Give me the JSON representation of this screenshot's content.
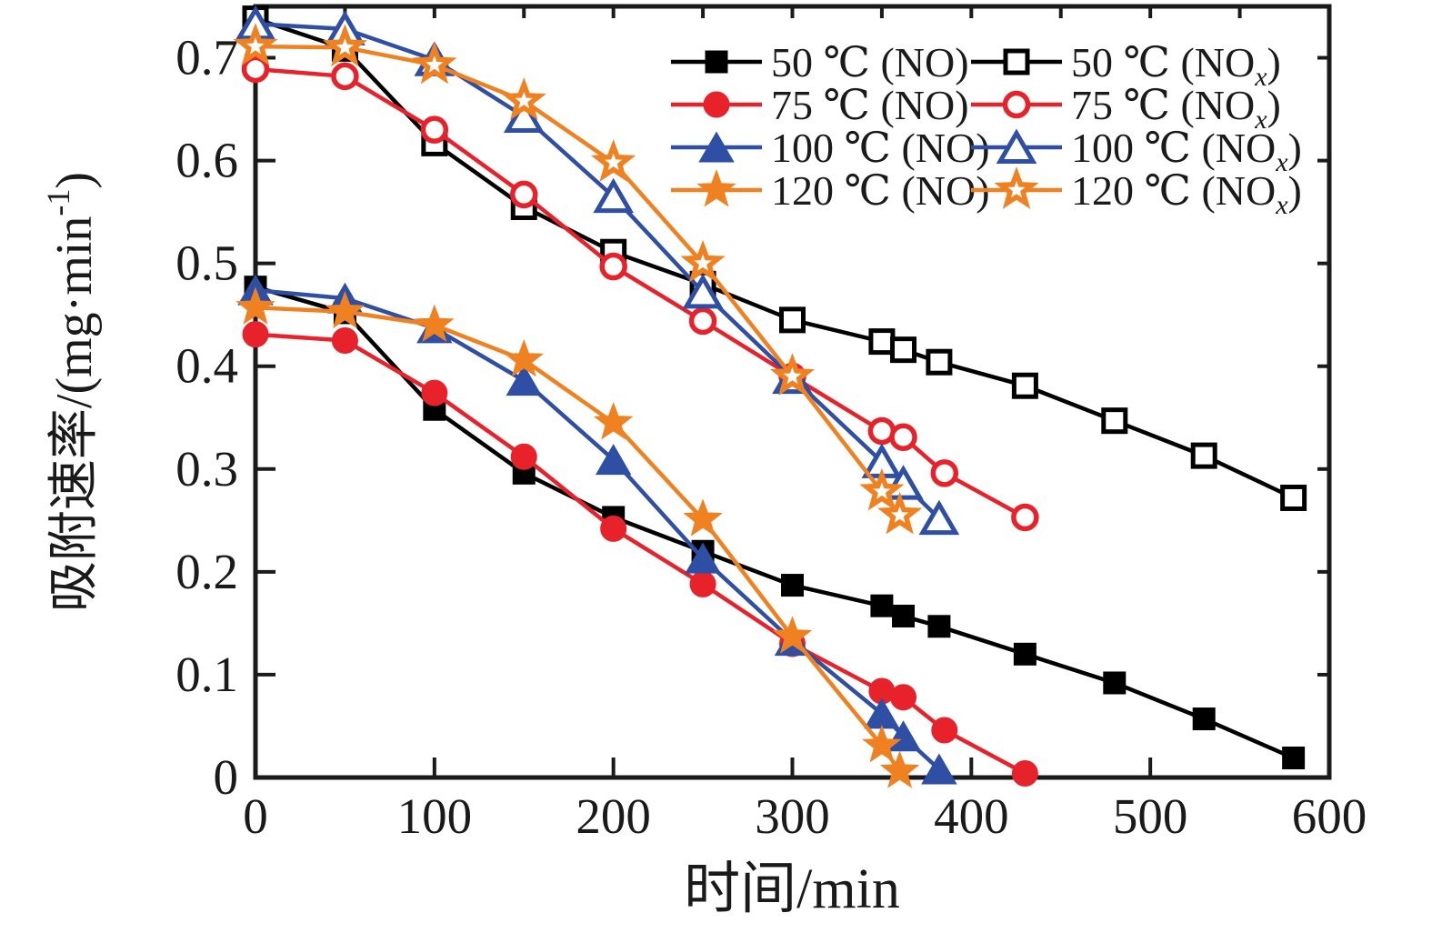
{
  "chart_data": {
    "type": "line",
    "title": "",
    "xlabel": "时间/min",
    "ylabel_pre": "吸附速率/(mg·min",
    "ylabel_sup": "-1",
    "ylabel_post": ")",
    "xlim": [
      0,
      600
    ],
    "ylim": [
      0,
      0.75
    ],
    "x_ticks": [
      0,
      100,
      200,
      300,
      400,
      500,
      600
    ],
    "x_tick_labels": [
      "0",
      "100",
      "200",
      "300",
      "400",
      "500",
      "600"
    ],
    "x_minor_tick_step_top": 50,
    "y_ticks": [
      0,
      0.1,
      0.2,
      0.3,
      0.4,
      0.5,
      0.6,
      0.7
    ],
    "y_tick_labels": [
      "0",
      "0.1",
      "0.2",
      "0.3",
      "0.4",
      "0.5",
      "0.6",
      "0.7"
    ],
    "grid": false,
    "legend_position": "top-right-inside",
    "colors": {
      "black": "#000000",
      "red": "#e8222a",
      "blue": "#2e4fa3",
      "orange": "#f08121"
    },
    "series": [
      {
        "id": "50c-no",
        "legend_pre": "50 ℃ (NO",
        "legend_sub": "",
        "legend_post": ")",
        "color": "#000000",
        "marker": "square",
        "filled": true,
        "legend_row": 0,
        "legend_col": 0,
        "points": [
          [
            0,
            0.477
          ],
          [
            50,
            0.452
          ],
          [
            100,
            0.358
          ],
          [
            150,
            0.296
          ],
          [
            200,
            0.253
          ],
          [
            250,
            0.22
          ],
          [
            300,
            0.187
          ],
          [
            350,
            0.167
          ],
          [
            362,
            0.157
          ],
          [
            382,
            0.147
          ],
          [
            430,
            0.12
          ],
          [
            480,
            0.092
          ],
          [
            530,
            0.057
          ],
          [
            580,
            0.019
          ]
        ]
      },
      {
        "id": "50c-nox",
        "legend_pre": "50 ℃ (NO",
        "legend_sub": "x",
        "legend_post": ")",
        "color": "#000000",
        "marker": "square",
        "filled": false,
        "legend_row": 0,
        "legend_col": 1,
        "points": [
          [
            0,
            0.738
          ],
          [
            50,
            0.709
          ],
          [
            100,
            0.617
          ],
          [
            150,
            0.555
          ],
          [
            200,
            0.511
          ],
          [
            250,
            0.48
          ],
          [
            300,
            0.445
          ],
          [
            350,
            0.424
          ],
          [
            362,
            0.416
          ],
          [
            382,
            0.404
          ],
          [
            430,
            0.381
          ],
          [
            480,
            0.347
          ],
          [
            530,
            0.313
          ],
          [
            580,
            0.272
          ]
        ]
      },
      {
        "id": "75c-no",
        "legend_pre": "75 ℃ (NO",
        "legend_sub": "",
        "legend_post": ")",
        "color": "#e8222a",
        "marker": "circle",
        "filled": true,
        "legend_row": 1,
        "legend_col": 0,
        "points": [
          [
            0,
            0.431
          ],
          [
            50,
            0.425
          ],
          [
            100,
            0.374
          ],
          [
            150,
            0.312
          ],
          [
            200,
            0.242
          ],
          [
            250,
            0.188
          ],
          [
            300,
            0.13
          ],
          [
            350,
            0.084
          ],
          [
            362,
            0.078
          ],
          [
            385,
            0.046
          ],
          [
            430,
            0.004
          ]
        ]
      },
      {
        "id": "75c-nox",
        "legend_pre": "75 ℃ (NO",
        "legend_sub": "x",
        "legend_post": ")",
        "color": "#e8222a",
        "marker": "circle",
        "filled": false,
        "legend_row": 1,
        "legend_col": 1,
        "points": [
          [
            0,
            0.689
          ],
          [
            50,
            0.682
          ],
          [
            100,
            0.63
          ],
          [
            150,
            0.567
          ],
          [
            200,
            0.497
          ],
          [
            250,
            0.444
          ],
          [
            300,
            0.39
          ],
          [
            350,
            0.337
          ],
          [
            362,
            0.331
          ],
          [
            385,
            0.296
          ],
          [
            430,
            0.253
          ]
        ]
      },
      {
        "id": "100c-no",
        "legend_pre": "100 ℃ (NO",
        "legend_sub": "",
        "legend_post": ")",
        "color": "#2e4fa3",
        "marker": "triangle",
        "filled": true,
        "legend_row": 2,
        "legend_col": 0,
        "points": [
          [
            0,
            0.474
          ],
          [
            50,
            0.466
          ],
          [
            100,
            0.437
          ],
          [
            150,
            0.386
          ],
          [
            200,
            0.309
          ],
          [
            250,
            0.213
          ],
          [
            300,
            0.133
          ],
          [
            350,
            0.062
          ],
          [
            362,
            0.04
          ],
          [
            382,
            0.008
          ]
        ]
      },
      {
        "id": "100c-nox",
        "legend_pre": "100 ℃ (NO",
        "legend_sub": "x",
        "legend_post": ")",
        "color": "#2e4fa3",
        "marker": "triangle",
        "filled": false,
        "legend_row": 2,
        "legend_col": 1,
        "points": [
          [
            0,
            0.733
          ],
          [
            50,
            0.728
          ],
          [
            100,
            0.698
          ],
          [
            150,
            0.643
          ],
          [
            200,
            0.565
          ],
          [
            250,
            0.472
          ],
          [
            300,
            0.389
          ],
          [
            350,
            0.307
          ],
          [
            362,
            0.286
          ],
          [
            382,
            0.252
          ]
        ]
      },
      {
        "id": "120c-no",
        "legend_pre": "120 ℃ (NO",
        "legend_sub": "",
        "legend_post": ")",
        "color": "#f08121",
        "marker": "star",
        "filled": true,
        "legend_row": 3,
        "legend_col": 0,
        "points": [
          [
            0,
            0.457
          ],
          [
            50,
            0.453
          ],
          [
            100,
            0.44
          ],
          [
            150,
            0.406
          ],
          [
            200,
            0.345
          ],
          [
            250,
            0.251
          ],
          [
            300,
            0.137
          ],
          [
            350,
            0.031
          ],
          [
            360,
            0.006
          ]
        ]
      },
      {
        "id": "120c-nox",
        "legend_pre": "120 ℃ (NO",
        "legend_sub": "x",
        "legend_post": ")",
        "color": "#f08121",
        "marker": "star",
        "filled": false,
        "legend_row": 3,
        "legend_col": 1,
        "points": [
          [
            0,
            0.711
          ],
          [
            50,
            0.71
          ],
          [
            100,
            0.693
          ],
          [
            150,
            0.658
          ],
          [
            200,
            0.598
          ],
          [
            250,
            0.5
          ],
          [
            300,
            0.39
          ],
          [
            350,
            0.278
          ],
          [
            360,
            0.255
          ]
        ]
      }
    ]
  }
}
